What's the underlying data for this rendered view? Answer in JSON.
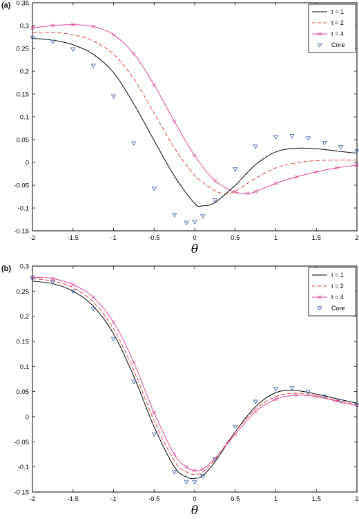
{
  "chart_data": [
    {
      "panel_label": "(a)",
      "type": "line",
      "xlabel": "θ",
      "ylabel": "",
      "xlim": [
        -2,
        2
      ],
      "ylim": [
        -0.15,
        0.35
      ],
      "xticks": [
        "-2",
        "-1.5",
        "-1",
        "-0.5",
        "0",
        "0.5",
        "1",
        "1.5",
        "2"
      ],
      "yticks": [
        "-0.15",
        "-0.1",
        "-0.05",
        "0",
        "0.05",
        "0.1",
        "0.15",
        "0.2",
        "0.25",
        "0.3",
        "0.35"
      ],
      "legend_position": "top-right",
      "series": [
        {
          "name": "t = 1",
          "color": "#000000",
          "style": "solid",
          "x": [
            -2,
            -1.75,
            -1.5,
            -1.25,
            -1,
            -0.75,
            -0.5,
            -0.25,
            0,
            0.1,
            0.25,
            0.5,
            0.75,
            1,
            1.25,
            1.5,
            1.75,
            2
          ],
          "y": [
            0.272,
            0.268,
            0.258,
            0.237,
            0.197,
            0.128,
            0.048,
            -0.03,
            -0.09,
            -0.095,
            -0.088,
            -0.05,
            -0.005,
            0.023,
            0.031,
            0.03,
            0.025,
            0.02
          ]
        },
        {
          "name": "t = 2",
          "color": "#e0413a",
          "style": "dashed",
          "x": [
            -2,
            -1.75,
            -1.5,
            -1.25,
            -1,
            -0.75,
            -0.5,
            -0.25,
            0,
            0.25,
            0.4,
            0.5,
            0.75,
            1,
            1.25,
            1.5,
            1.75,
            2
          ],
          "y": [
            0.285,
            0.285,
            0.28,
            0.266,
            0.237,
            0.183,
            0.108,
            0.032,
            -0.028,
            -0.062,
            -0.068,
            -0.063,
            -0.035,
            -0.012,
            -0.001,
            0.004,
            0.005,
            0.005
          ]
        },
        {
          "name": "t = 4",
          "color": "#e0459a",
          "style": "solid-x",
          "x": [
            -2,
            -1.75,
            -1.5,
            -1.25,
            -1,
            -0.75,
            -0.5,
            -0.25,
            0,
            0.25,
            0.5,
            0.65,
            0.75,
            1,
            1.25,
            1.5,
            1.75,
            2
          ],
          "y": [
            0.295,
            0.3,
            0.302,
            0.298,
            0.28,
            0.238,
            0.17,
            0.09,
            0.015,
            -0.04,
            -0.065,
            -0.068,
            -0.064,
            -0.046,
            -0.032,
            -0.021,
            -0.012,
            -0.006
          ]
        },
        {
          "name": "Core",
          "color": "#4a6ab0",
          "style": "triangle",
          "x": [
            -2,
            -1.75,
            -1.5,
            -1.25,
            -1,
            -0.75,
            -0.5,
            -0.25,
            -0.1,
            0,
            0.1,
            0.25,
            0.5,
            0.75,
            1,
            1.2,
            1.4,
            1.6,
            1.8,
            2
          ],
          "y": [
            0.273,
            0.265,
            0.248,
            0.212,
            0.145,
            0.042,
            -0.057,
            -0.115,
            -0.132,
            -0.13,
            -0.118,
            -0.083,
            -0.015,
            0.035,
            0.056,
            0.058,
            0.053,
            0.043,
            0.034,
            0.025
          ]
        }
      ]
    },
    {
      "panel_label": "(b)",
      "type": "line",
      "xlabel": "θ",
      "ylabel": "",
      "xlim": [
        -2,
        2
      ],
      "ylim": [
        -0.15,
        0.3
      ],
      "xticks": [
        "-2",
        "-1.5",
        "-1",
        "-0.5",
        "0",
        "0.5",
        "1",
        "1.5",
        "2"
      ],
      "yticks": [
        "-0.15",
        "-0.1",
        "-0.05",
        "0",
        "0.05",
        "0.1",
        "0.15",
        "0.2",
        "0.25",
        "0.3"
      ],
      "legend_position": "top-right",
      "series": [
        {
          "name": "t = 1",
          "color": "#000000",
          "style": "solid",
          "x": [
            -2,
            -1.75,
            -1.5,
            -1.25,
            -1,
            -0.75,
            -0.5,
            -0.25,
            -0.1,
            0,
            0.1,
            0.25,
            0.5,
            0.75,
            1,
            1.25,
            1.5,
            1.75,
            2
          ],
          "y": [
            0.27,
            0.265,
            0.25,
            0.22,
            0.165,
            0.08,
            -0.02,
            -0.1,
            -0.12,
            -0.123,
            -0.117,
            -0.09,
            -0.03,
            0.02,
            0.048,
            0.052,
            0.045,
            0.036,
            0.027
          ]
        },
        {
          "name": "t = 2",
          "color": "#e0413a",
          "style": "dashed",
          "x": [
            -2,
            -1.75,
            -1.5,
            -1.25,
            -1,
            -0.75,
            -0.5,
            -0.25,
            -0.1,
            0,
            0.1,
            0.25,
            0.5,
            0.75,
            1,
            1.25,
            1.5,
            1.75,
            2
          ],
          "y": [
            0.275,
            0.27,
            0.257,
            0.228,
            0.175,
            0.092,
            -0.008,
            -0.088,
            -0.11,
            -0.115,
            -0.11,
            -0.085,
            -0.03,
            0.015,
            0.04,
            0.047,
            0.042,
            0.033,
            0.024
          ]
        },
        {
          "name": "t = 4",
          "color": "#e0459a",
          "style": "solid-x",
          "x": [
            -2,
            -1.75,
            -1.5,
            -1.25,
            -1,
            -0.75,
            -0.5,
            -0.25,
            -0.1,
            0,
            0.1,
            0.25,
            0.5,
            0.75,
            1,
            1.25,
            1.5,
            1.75,
            2
          ],
          "y": [
            0.278,
            0.275,
            0.263,
            0.238,
            0.188,
            0.108,
            0.008,
            -0.075,
            -0.1,
            -0.107,
            -0.104,
            -0.083,
            -0.035,
            0.01,
            0.035,
            0.043,
            0.04,
            0.031,
            0.022
          ]
        },
        {
          "name": "Core",
          "color": "#4a6ab0",
          "style": "triangle",
          "x": [
            -2,
            -1.75,
            -1.5,
            -1.25,
            -1,
            -0.75,
            -0.5,
            -0.25,
            -0.1,
            0,
            0.1,
            0.25,
            0.5,
            0.75,
            1,
            1.2,
            1.4,
            1.6,
            1.8,
            2
          ],
          "y": [
            0.275,
            0.268,
            0.25,
            0.215,
            0.155,
            0.07,
            -0.035,
            -0.11,
            -0.13,
            -0.13,
            -0.118,
            -0.085,
            -0.02,
            0.03,
            0.055,
            0.057,
            0.05,
            0.04,
            0.031,
            0.023
          ]
        }
      ]
    }
  ]
}
